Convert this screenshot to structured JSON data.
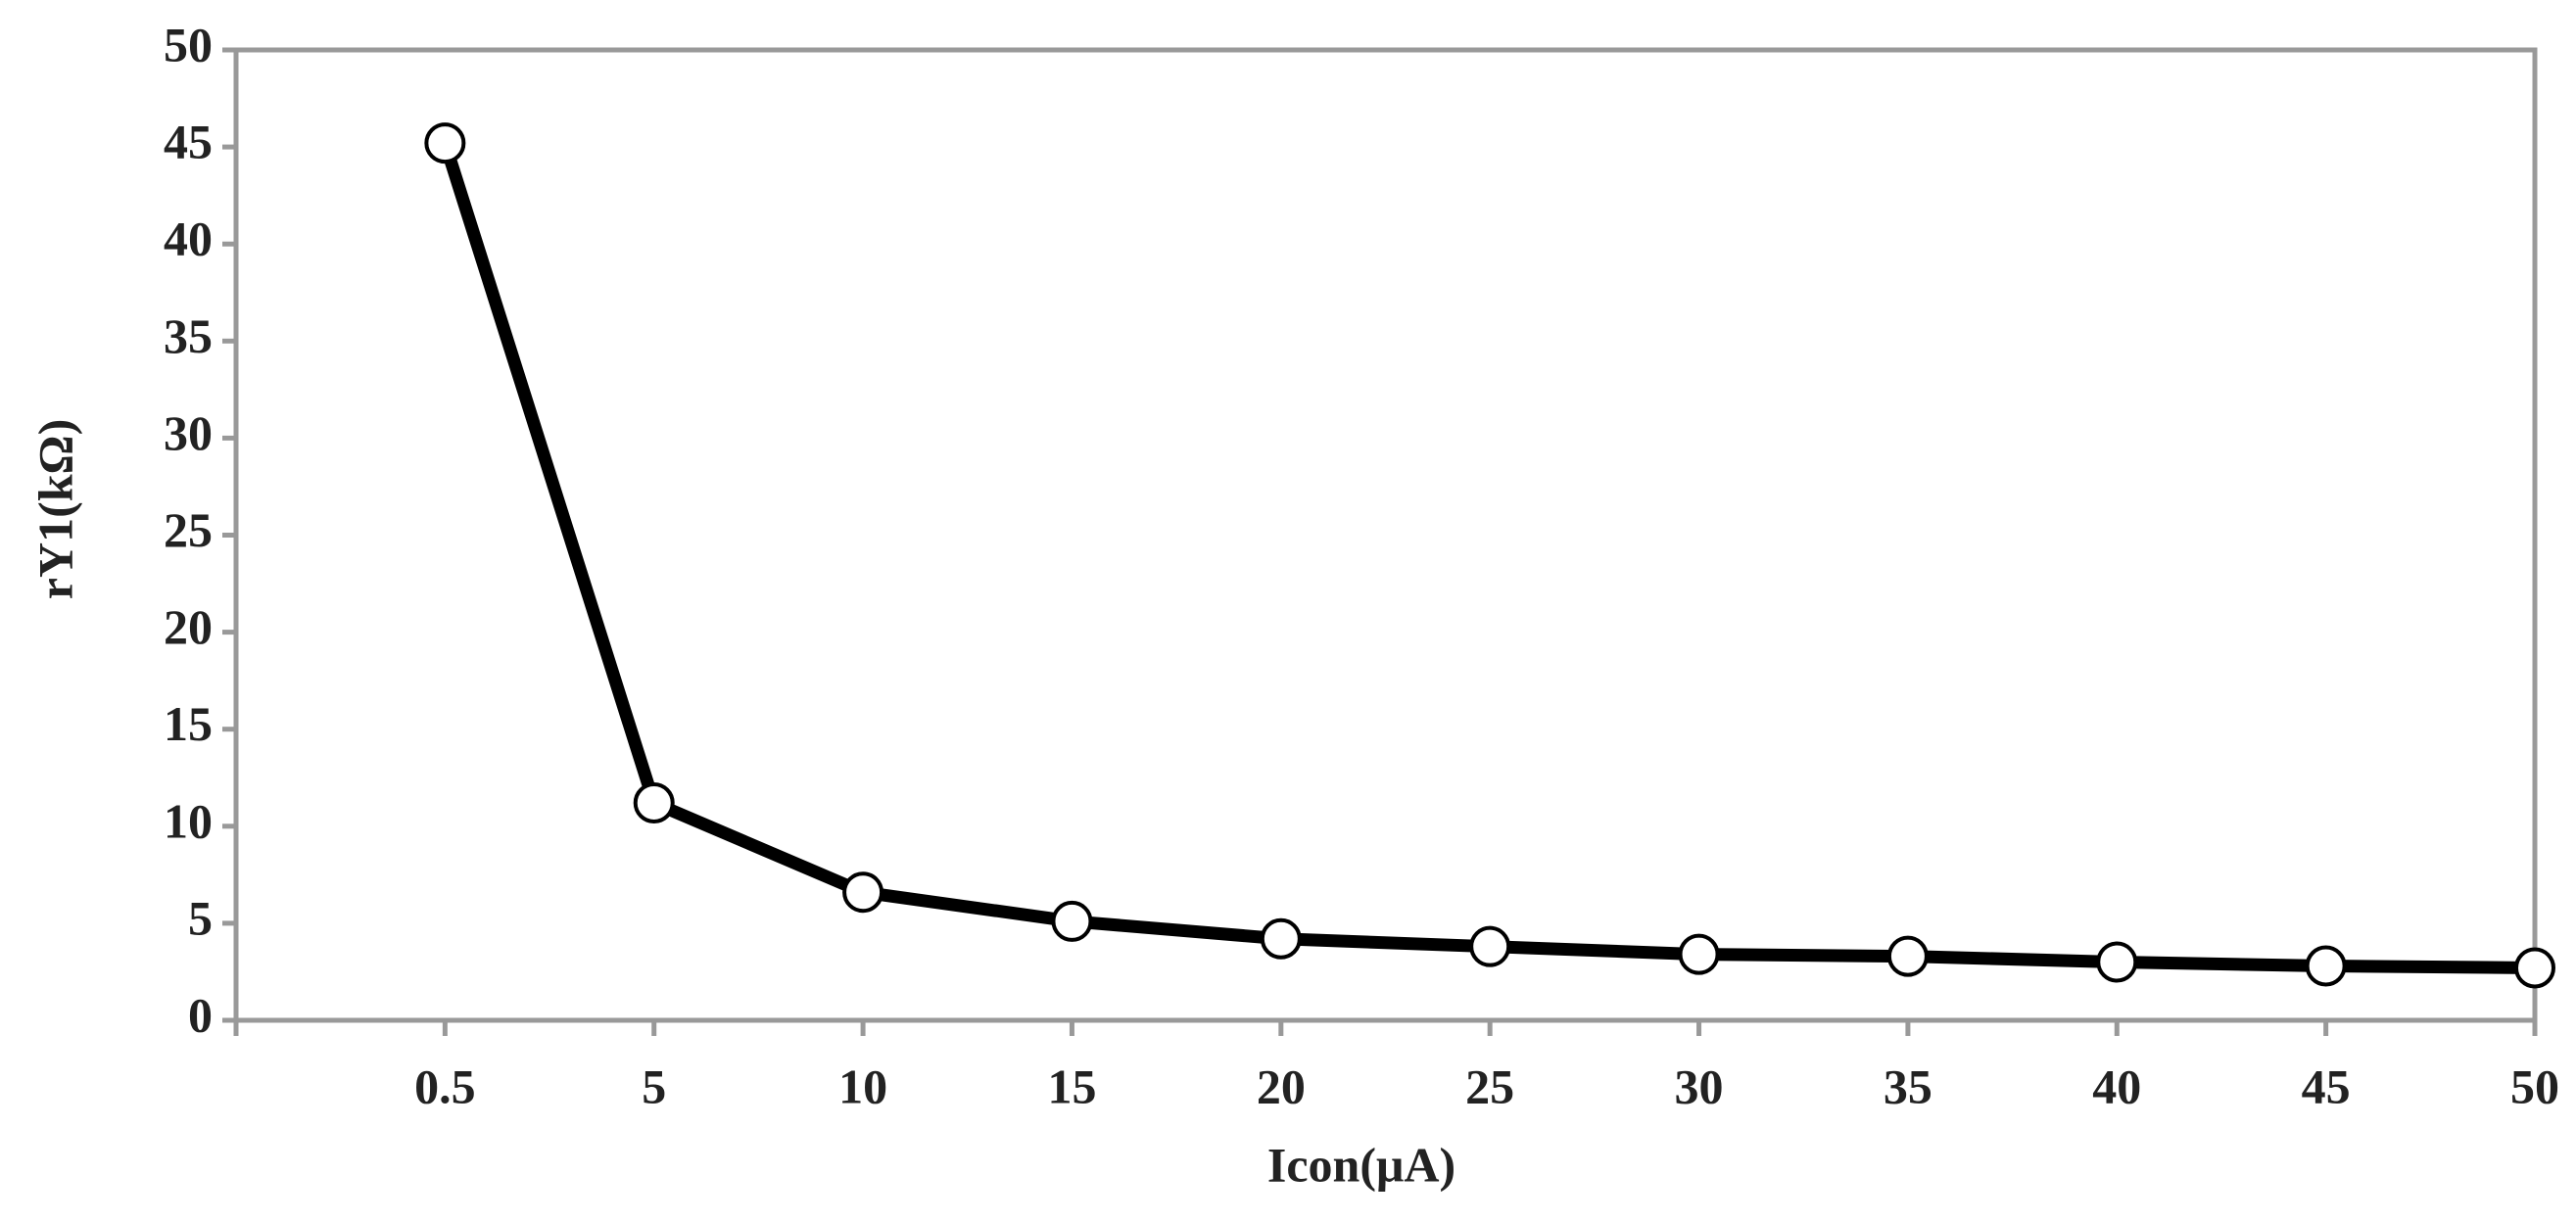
{
  "chart_data": {
    "type": "line",
    "x_label": "Icon(μA)",
    "y_label": "rY1(kΩ)",
    "categories": [
      "0.5",
      "5",
      "10",
      "15",
      "20",
      "25",
      "30",
      "35",
      "40",
      "45",
      "50"
    ],
    "series": [
      {
        "name": "rY1",
        "color": "#000000",
        "values": [
          45.2,
          11.2,
          6.6,
          5.1,
          4.2,
          3.8,
          3.4,
          3.3,
          3.0,
          2.8,
          2.7
        ]
      }
    ],
    "ylim": [
      0,
      50
    ],
    "yticks": [
      0,
      5,
      10,
      15,
      20,
      25,
      30,
      35,
      40,
      45,
      50
    ],
    "grid": false
  }
}
